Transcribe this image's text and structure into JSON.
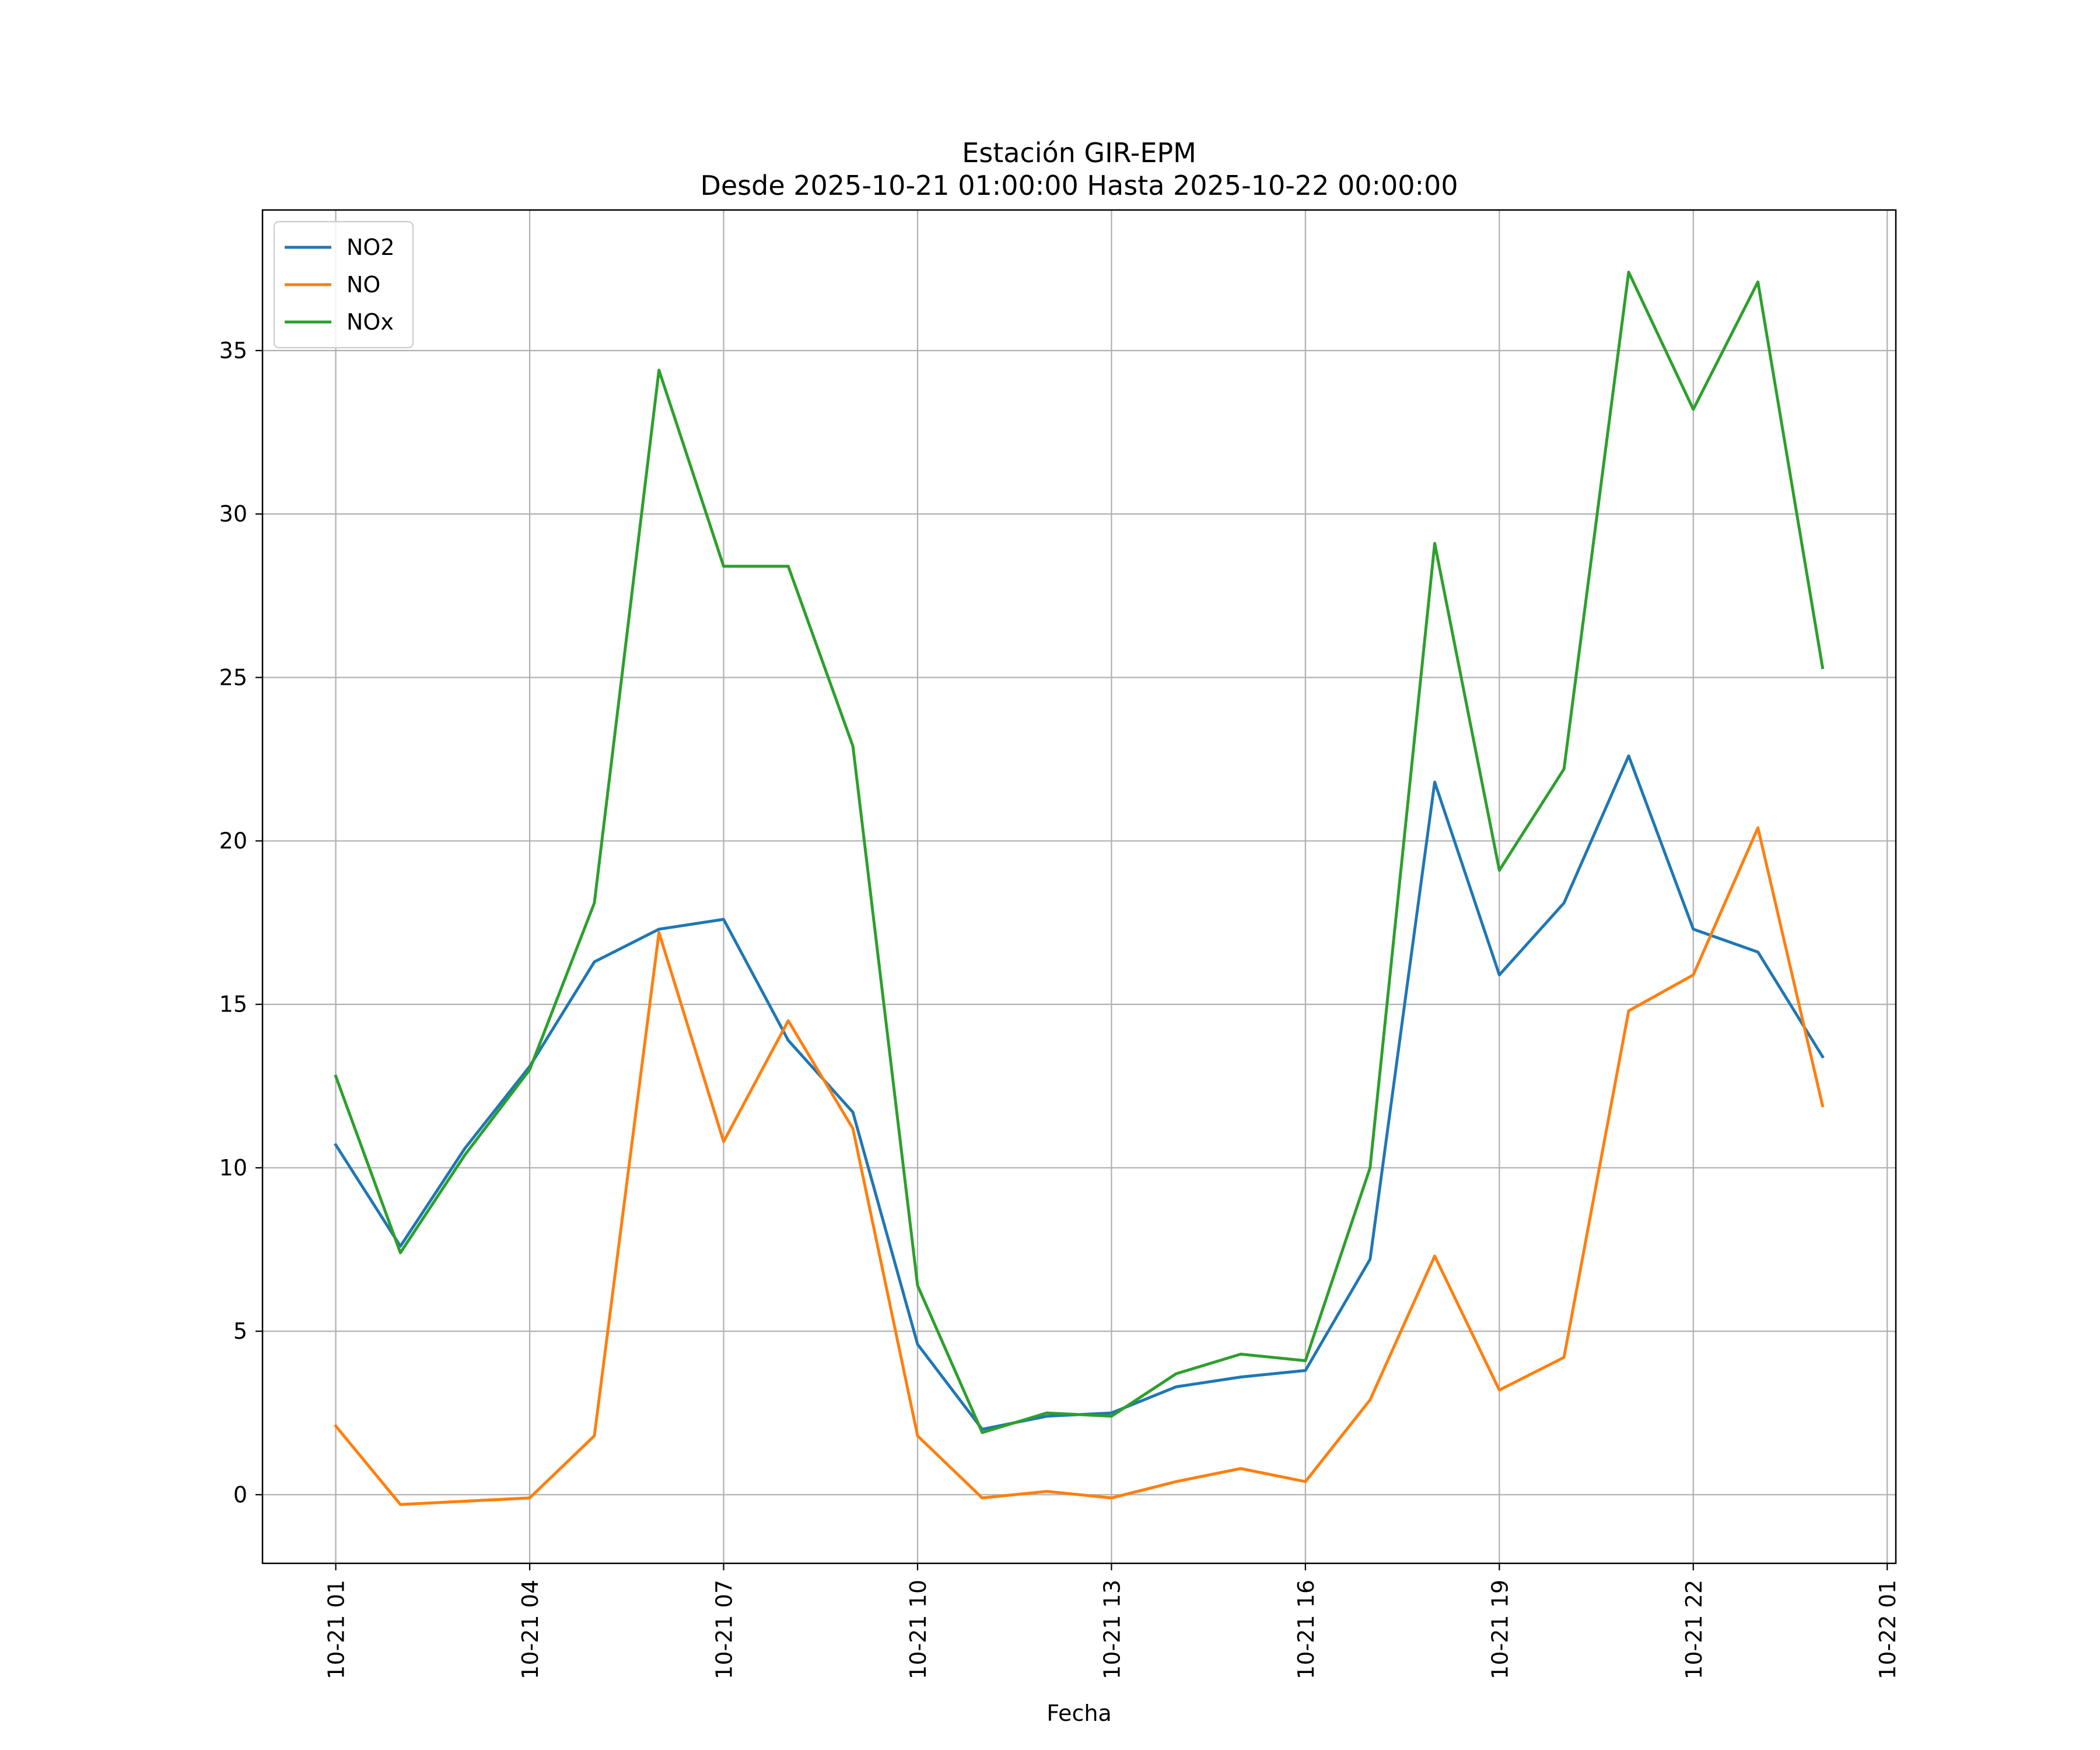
{
  "chart_data": {
    "type": "line",
    "title": "Estación GIR-EPM",
    "subtitle": "Desde 2025-10-21 01:00:00 Hasta 2025-10-22 00:00:00",
    "xlabel": "Fecha",
    "ylabel": "",
    "x": [
      "2025-10-21 01:00",
      "2025-10-21 02:00",
      "2025-10-21 03:00",
      "2025-10-21 04:00",
      "2025-10-21 05:00",
      "2025-10-21 06:00",
      "2025-10-21 07:00",
      "2025-10-21 08:00",
      "2025-10-21 09:00",
      "2025-10-21 10:00",
      "2025-10-21 11:00",
      "2025-10-21 12:00",
      "2025-10-21 13:00",
      "2025-10-21 14:00",
      "2025-10-21 15:00",
      "2025-10-21 16:00",
      "2025-10-21 17:00",
      "2025-10-21 18:00",
      "2025-10-21 19:00",
      "2025-10-21 20:00",
      "2025-10-21 21:00",
      "2025-10-21 22:00",
      "2025-10-21 23:00",
      "2025-10-22 00:00"
    ],
    "xlim": [
      "2025-10-20 23:52",
      "2025-10-22 01:08"
    ],
    "ylim": [
      -2.1,
      39.3
    ],
    "xticks": [
      "2025-10-21 01:00",
      "2025-10-21 04:00",
      "2025-10-21 07:00",
      "2025-10-21 10:00",
      "2025-10-21 13:00",
      "2025-10-21 16:00",
      "2025-10-21 19:00",
      "2025-10-21 22:00",
      "2025-10-22 01:00"
    ],
    "xtick_labels": [
      "10-21 01",
      "10-21 04",
      "10-21 07",
      "10-21 10",
      "10-21 13",
      "10-21 16",
      "10-21 19",
      "10-21 22",
      "10-22 01"
    ],
    "yticks": [
      0,
      5,
      10,
      15,
      20,
      25,
      30,
      35
    ],
    "ytick_labels": [
      "0",
      "5",
      "10",
      "15",
      "20",
      "25",
      "30",
      "35"
    ],
    "grid": true,
    "legend_position": "top-left",
    "series": [
      {
        "name": "NO2",
        "color": "#1f77b4",
        "values": [
          10.7,
          7.6,
          10.6,
          13.1,
          16.3,
          17.3,
          17.6,
          13.9,
          11.7,
          4.6,
          2.0,
          2.4,
          2.5,
          3.3,
          3.6,
          3.8,
          7.2,
          21.8,
          15.9,
          18.1,
          22.6,
          17.3,
          16.6,
          13.4
        ]
      },
      {
        "name": "NO",
        "color": "#ff7f0e",
        "values": [
          2.1,
          -0.3,
          -0.2,
          -0.1,
          1.8,
          17.2,
          10.8,
          14.5,
          11.2,
          1.8,
          -0.1,
          0.1,
          -0.1,
          0.4,
          0.8,
          0.4,
          2.9,
          7.3,
          3.2,
          4.2,
          14.8,
          15.9,
          20.4,
          11.9
        ]
      },
      {
        "name": "NOx",
        "color": "#2ca02c",
        "values": [
          12.8,
          7.4,
          10.4,
          13.0,
          18.1,
          34.4,
          28.4,
          28.4,
          22.9,
          6.4,
          1.9,
          2.5,
          2.4,
          3.7,
          4.3,
          4.1,
          10.0,
          29.1,
          19.1,
          22.2,
          37.4,
          33.2,
          37.1,
          25.3
        ]
      }
    ]
  }
}
